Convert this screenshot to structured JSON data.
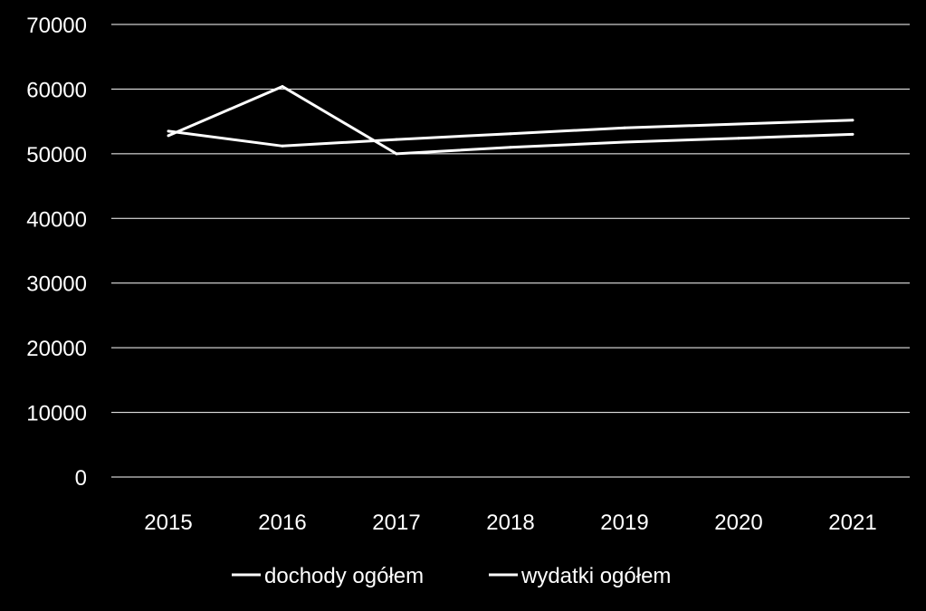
{
  "chart_data": {
    "type": "line",
    "title": "",
    "xlabel": "",
    "ylabel": "",
    "categories": [
      "2015",
      "2016",
      "2017",
      "2018",
      "2019",
      "2020",
      "2021"
    ],
    "series": [
      {
        "name": "dochody ogółem",
        "values": [
          53500,
          51200,
          52200,
          53100,
          54000,
          54600,
          55200
        ],
        "color": "#ffffff"
      },
      {
        "name": "wydatki ogółem",
        "values": [
          52800,
          60400,
          50000,
          51000,
          51800,
          52400,
          53000
        ],
        "color": "#ffffff"
      }
    ],
    "ylim": [
      0,
      70000
    ],
    "yticks": [
      "0",
      "10000",
      "20000",
      "30000",
      "40000",
      "50000",
      "60000",
      "70000"
    ],
    "grid": true,
    "legend_position": "bottom",
    "background": "#000000",
    "gridline_color": "#ffffff"
  }
}
